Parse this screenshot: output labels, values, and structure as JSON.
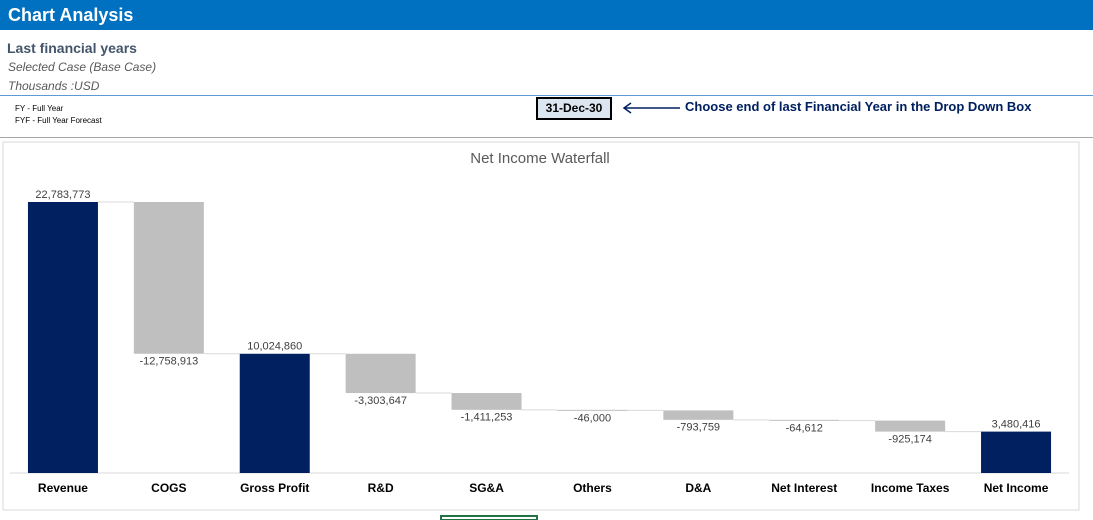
{
  "header": {
    "title": "Chart Analysis",
    "subtitle": "Last financial years",
    "case": "Selected Case (Base Case)",
    "units": "Thousands :USD"
  },
  "legend": [
    "FY - Full Year",
    "FYF - Full Year Forecast"
  ],
  "dropdown": {
    "value": "31-Dec-30",
    "hint": "Choose end of last Financial Year in the Drop Down Box"
  },
  "chart_data": {
    "type": "waterfall",
    "title": "Net Income Waterfall",
    "categories": [
      "Revenue",
      "COGS",
      "Gross Profit",
      "R&D",
      "SG&A",
      "Others",
      "D&A",
      "Net Interest",
      "Income Taxes",
      "Net Income"
    ],
    "values": [
      22783773,
      -12758913,
      10024860,
      -3303647,
      -1411253,
      -46000,
      -793759,
      -64612,
      -925174,
      3480416
    ],
    "value_labels": [
      "22,783,773",
      "-12,758,913",
      "10,024,860",
      "-3,303,647",
      "-1,411,253",
      "-46,000",
      "-793,759",
      "-64,612",
      "-925,174",
      "3,480,416"
    ],
    "is_total": [
      true,
      false,
      true,
      false,
      false,
      false,
      false,
      false,
      false,
      true
    ],
    "total_color": "#002060",
    "delta_color": "#bfbfbf"
  }
}
